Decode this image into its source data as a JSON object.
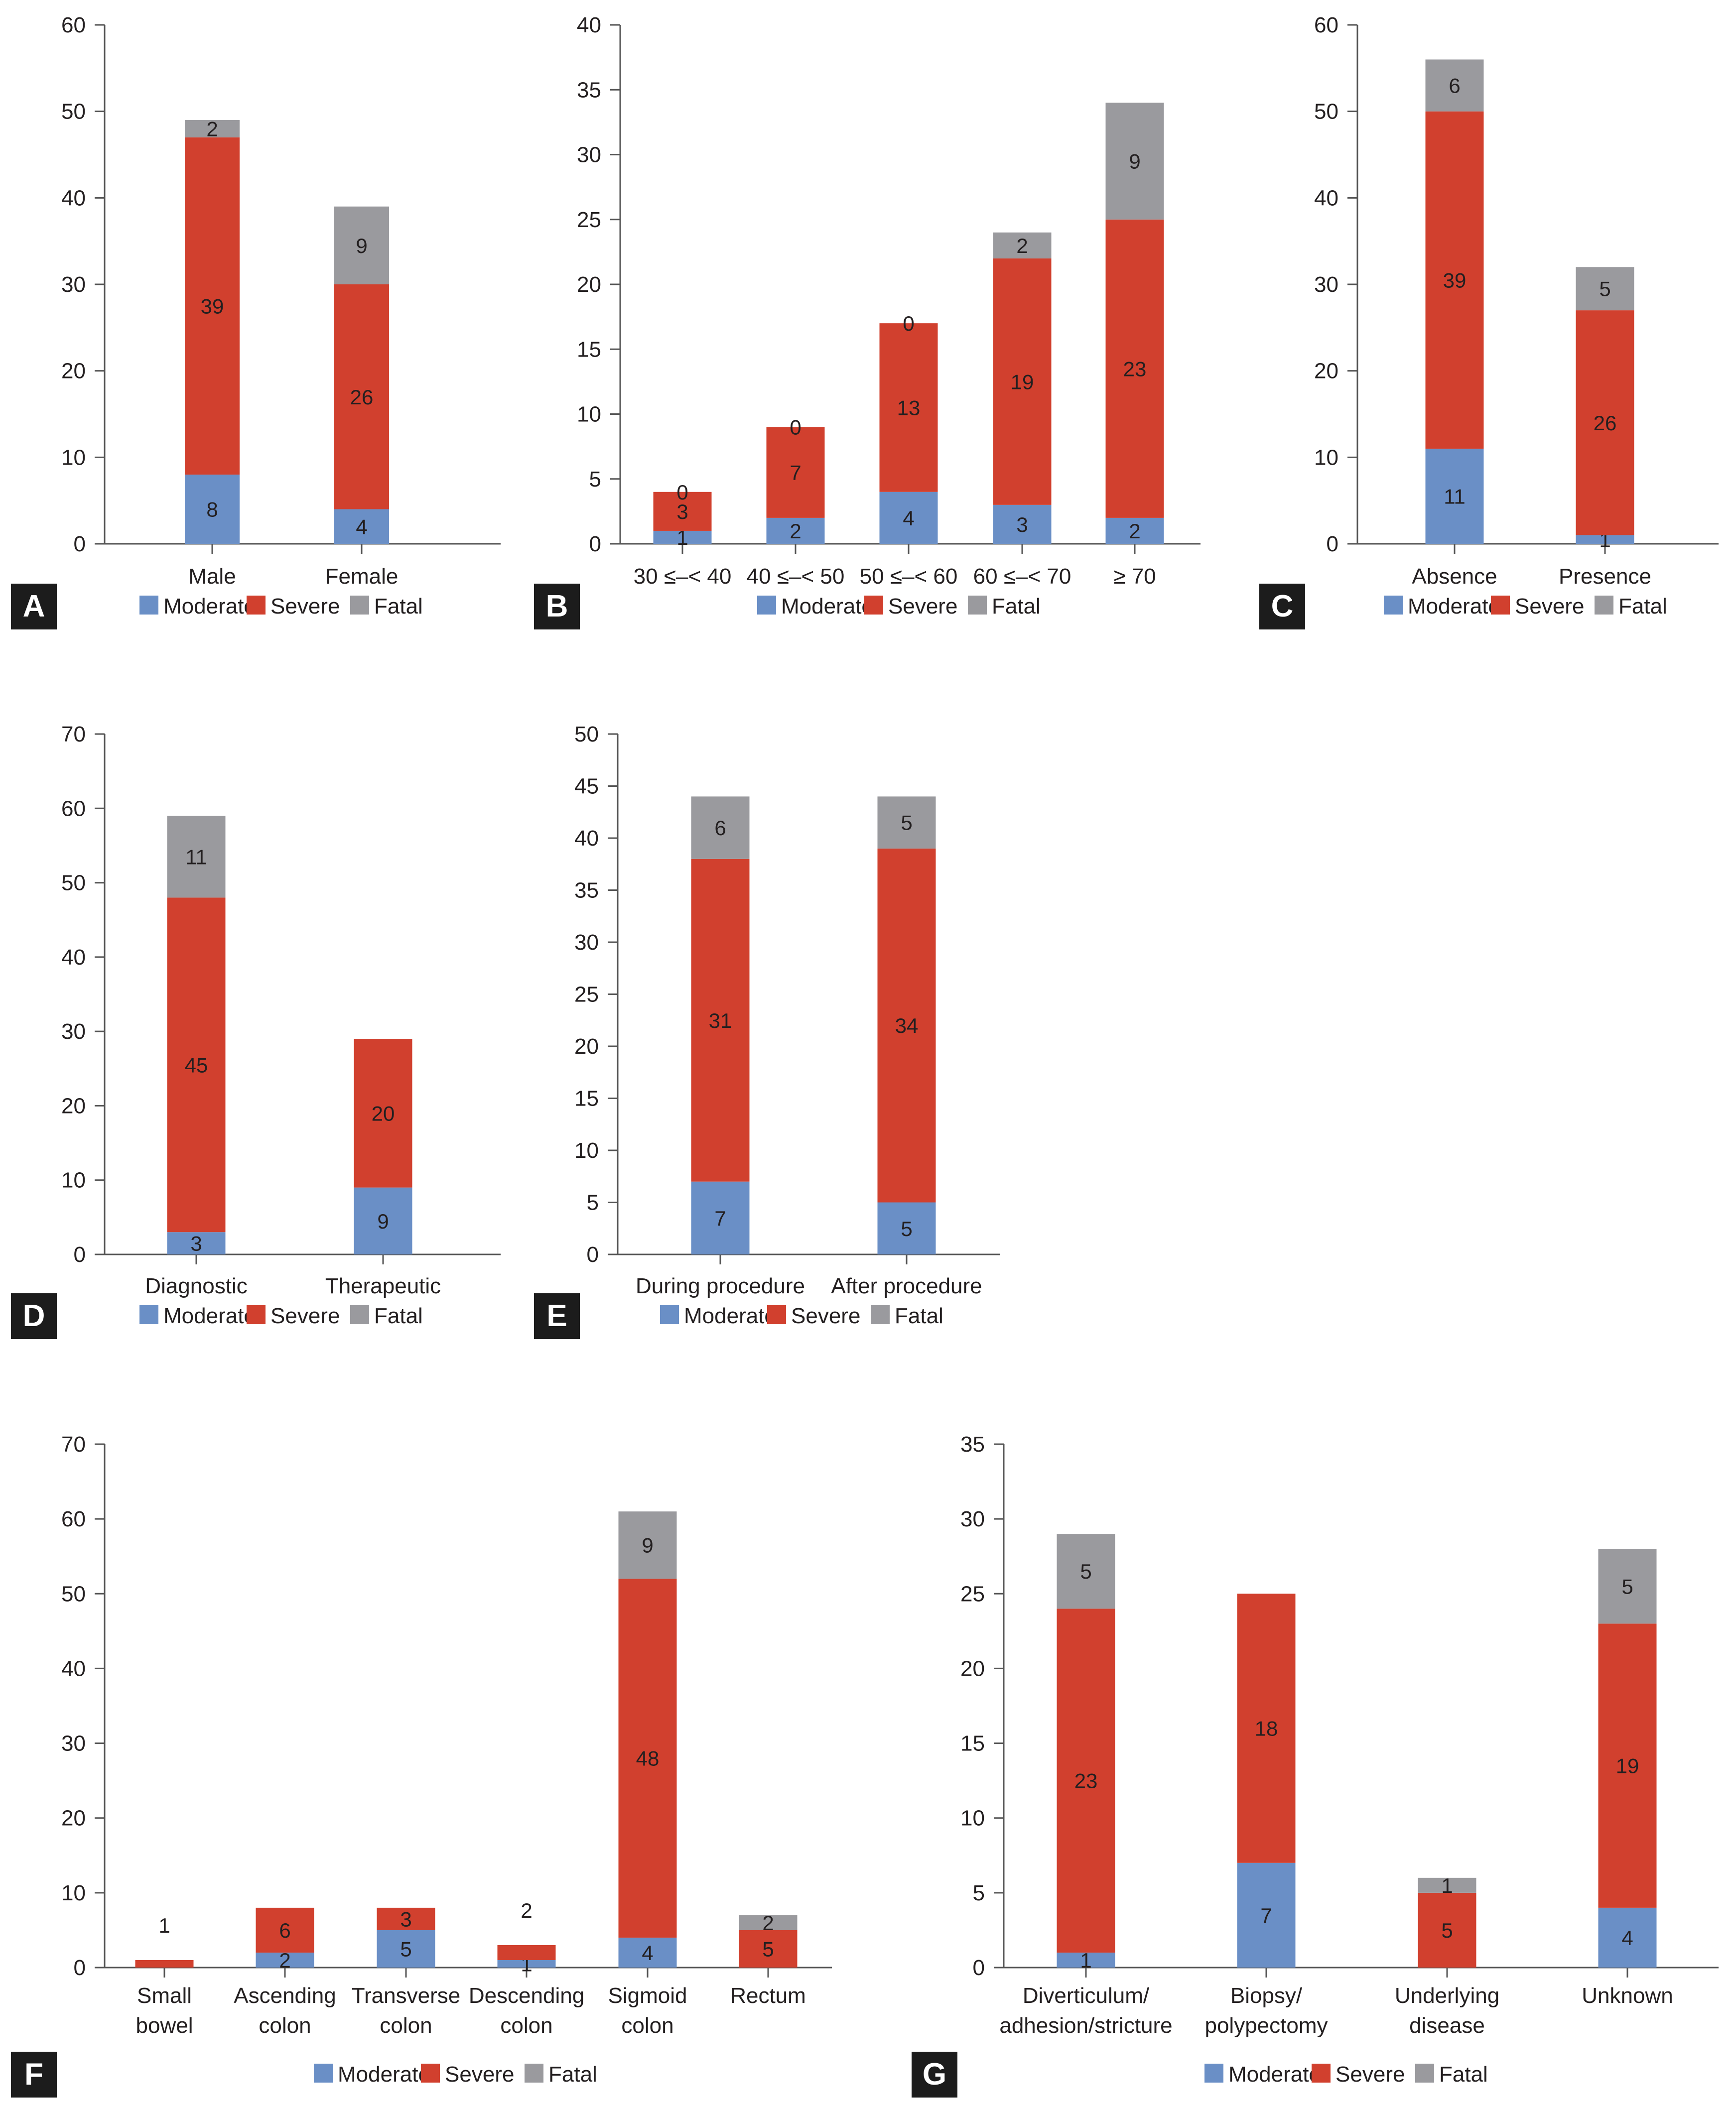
{
  "colors": {
    "moderate": "#6a8fc6",
    "severe": "#d1402e",
    "fatal": "#9a9a9e",
    "axis": "#555555",
    "text": "#231f20",
    "tagBg": "#1c1c1c",
    "tagText": "#ffffff"
  },
  "legend": [
    "Moderate",
    "Severe",
    "Fatal"
  ],
  "chart_data": [
    {
      "panel": "A",
      "type": "bar",
      "stacked": true,
      "ylim": [
        0,
        60
      ],
      "yticks": [
        0,
        10,
        20,
        30,
        40,
        50,
        60
      ],
      "categories": [
        "Male",
        "Female"
      ],
      "series": [
        {
          "name": "Moderate",
          "values": [
            8,
            4
          ]
        },
        {
          "name": "Severe",
          "values": [
            39,
            26
          ]
        },
        {
          "name": "Fatal",
          "values": [
            2,
            9
          ]
        }
      ]
    },
    {
      "panel": "B",
      "type": "bar",
      "stacked": true,
      "ylim": [
        0,
        40
      ],
      "yticks": [
        0,
        5,
        10,
        15,
        20,
        25,
        30,
        35,
        40
      ],
      "categories": [
        "30 ≤–< 40",
        "40 ≤–< 50",
        "50 ≤–< 60",
        "60 ≤–< 70",
        "≥ 70"
      ],
      "series": [
        {
          "name": "Moderate",
          "values": [
            1,
            2,
            4,
            3,
            2
          ]
        },
        {
          "name": "Severe",
          "values": [
            3,
            7,
            13,
            19,
            23
          ]
        },
        {
          "name": "Fatal",
          "values": [
            0,
            0,
            0,
            2,
            9
          ]
        }
      ]
    },
    {
      "panel": "C",
      "type": "bar",
      "stacked": true,
      "ylim": [
        0,
        60
      ],
      "yticks": [
        0,
        10,
        20,
        30,
        40,
        50,
        60
      ],
      "categories": [
        "Absence",
        "Presence"
      ],
      "series": [
        {
          "name": "Moderate",
          "values": [
            11,
            1
          ]
        },
        {
          "name": "Severe",
          "values": [
            39,
            26
          ]
        },
        {
          "name": "Fatal",
          "values": [
            6,
            5
          ]
        }
      ]
    },
    {
      "panel": "D",
      "type": "bar",
      "stacked": true,
      "ylim": [
        0,
        70
      ],
      "yticks": [
        0,
        10,
        20,
        30,
        40,
        50,
        60,
        70
      ],
      "categories": [
        "Diagnostic",
        "Therapeutic"
      ],
      "series": [
        {
          "name": "Moderate",
          "values": [
            3,
            9
          ]
        },
        {
          "name": "Severe",
          "values": [
            45,
            20
          ]
        },
        {
          "name": "Fatal",
          "values": [
            11,
            0
          ]
        }
      ]
    },
    {
      "panel": "E",
      "type": "bar",
      "stacked": true,
      "ylim": [
        0,
        50
      ],
      "yticks": [
        0,
        5,
        10,
        15,
        20,
        25,
        30,
        35,
        40,
        45,
        50
      ],
      "categories": [
        "During procedure",
        "After procedure"
      ],
      "series": [
        {
          "name": "Moderate",
          "values": [
            7,
            5
          ]
        },
        {
          "name": "Severe",
          "values": [
            31,
            34
          ]
        },
        {
          "name": "Fatal",
          "values": [
            6,
            5
          ]
        }
      ]
    },
    {
      "panel": "F",
      "type": "bar",
      "stacked": true,
      "ylim": [
        0,
        70
      ],
      "yticks": [
        0,
        10,
        20,
        30,
        40,
        50,
        60,
        70
      ],
      "categories": [
        "Small\nbowel",
        "Ascending\ncolon",
        "Transverse\ncolon",
        "Descending\ncolon",
        "Sigmoid\ncolon",
        "Rectum"
      ],
      "series": [
        {
          "name": "Moderate",
          "values": [
            0,
            2,
            5,
            1,
            4,
            0
          ]
        },
        {
          "name": "Severe",
          "values": [
            1,
            6,
            3,
            2,
            48,
            5
          ]
        },
        {
          "name": "Fatal",
          "values": [
            0,
            0,
            0,
            0,
            9,
            2
          ]
        }
      ]
    },
    {
      "panel": "G",
      "type": "bar",
      "stacked": true,
      "ylim": [
        0,
        35
      ],
      "yticks": [
        0,
        5,
        10,
        15,
        20,
        25,
        30,
        35
      ],
      "categories": [
        "Diverticulum/\nadhesion/stricture",
        "Biopsy/\npolypectomy",
        "Underlying\ndisease",
        "Unknown"
      ],
      "series": [
        {
          "name": "Moderate",
          "values": [
            1,
            7,
            0,
            4
          ]
        },
        {
          "name": "Severe",
          "values": [
            23,
            18,
            5,
            19
          ]
        },
        {
          "name": "Fatal",
          "values": [
            5,
            0,
            1,
            5
          ]
        }
      ]
    }
  ]
}
